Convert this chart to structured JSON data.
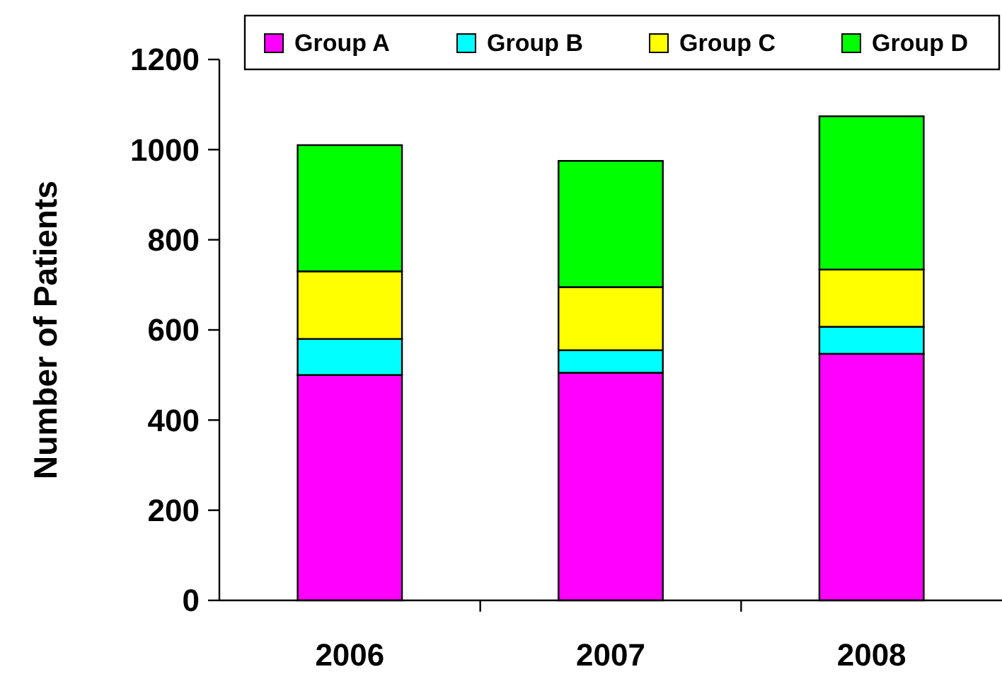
{
  "chart_data": {
    "type": "bar",
    "stacked": true,
    "ylabel": "Number of Patients",
    "categories": [
      "2006",
      "2007",
      "2008"
    ],
    "series": [
      {
        "name": "Group A",
        "color": "#ff00ff",
        "values": [
          500,
          505,
          547
        ]
      },
      {
        "name": "Group B",
        "color": "#00ffff",
        "values": [
          80,
          50,
          60
        ]
      },
      {
        "name": "Group C",
        "color": "#ffff00",
        "values": [
          150,
          140,
          127
        ]
      },
      {
        "name": "Group D",
        "color": "#00ff00",
        "values": [
          280,
          280,
          340
        ]
      }
    ],
    "ylim": [
      0,
      1200
    ],
    "yticks": [
      0,
      200,
      400,
      600,
      800,
      1000,
      1200
    ],
    "legend": "top",
    "grid": false
  }
}
